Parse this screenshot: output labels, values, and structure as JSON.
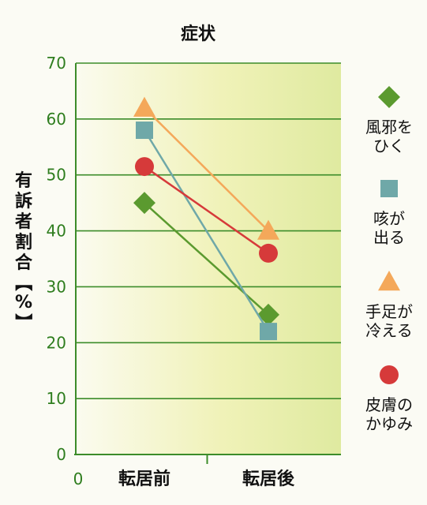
{
  "chart_data": {
    "type": "line",
    "title": "症状",
    "ylabel": "有訴者割合【%】",
    "ylim": [
      0,
      70
    ],
    "yticks": [
      0,
      10,
      20,
      30,
      40,
      50,
      60,
      70
    ],
    "x_origin_label": "0",
    "categories": [
      "転居前",
      "転居後"
    ],
    "grid": true,
    "legend_position": "right",
    "series": [
      {
        "name": "風邪をひく",
        "legend_lines": [
          "風邪を",
          "ひく"
        ],
        "values": [
          45,
          25
        ],
        "color": "#5b9a2f",
        "marker": "diamond"
      },
      {
        "name": "咳が出る",
        "legend_lines": [
          "咳が",
          "出る"
        ],
        "values": [
          58,
          22
        ],
        "color": "#6fa8a8",
        "marker": "square"
      },
      {
        "name": "手足が冷える",
        "legend_lines": [
          "手足が",
          "冷える"
        ],
        "values": [
          62,
          40
        ],
        "color": "#f4a85a",
        "marker": "triangle"
      },
      {
        "name": "皮膚のかゆみ",
        "legend_lines": [
          "皮膚の",
          "かゆみ"
        ],
        "values": [
          51.5,
          36
        ],
        "color": "#d63a3a",
        "marker": "circle"
      }
    ]
  }
}
